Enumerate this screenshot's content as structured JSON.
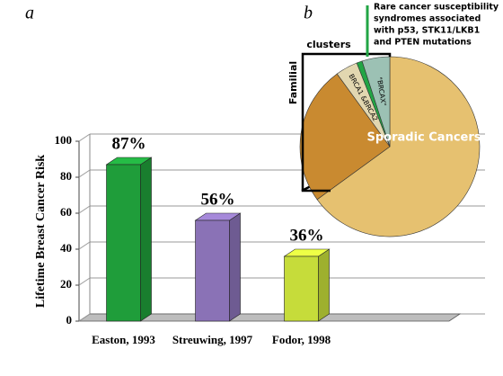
{
  "chart_data": [
    {
      "type": "bar",
      "panel": "a",
      "y_label": "Lifetime Breast Cancer Risk",
      "categories": [
        "Easton, 1993",
        "Streuwing, 1997",
        "Fodor, 1998"
      ],
      "values": [
        87,
        56,
        36
      ],
      "value_labels": [
        "87%",
        "56%",
        "36%"
      ],
      "colors": [
        "#1f9d3a",
        "#8a72b6",
        "#c6dc3a"
      ],
      "ylim": [
        0,
        100
      ],
      "yticks": [
        0,
        20,
        40,
        60,
        80,
        100
      ],
      "grid": true
    },
    {
      "type": "pie",
      "panel": "b",
      "categories": [
        "Sporadic Cancers",
        null,
        "BRCA1 &BRCA2",
        null,
        "\"BRCAX\""
      ],
      "values": [
        65,
        25,
        4,
        1,
        5
      ],
      "colors": [
        "#e6c170",
        "#c98a30",
        "#e2d7b0",
        "#22a545",
        "#9cc1b4"
      ],
      "annotations": [
        "Familial",
        "clusters",
        "Rare cancer susceptibility",
        "syndromes associated",
        "with p53, STK11/LKB1",
        "and PTEN mutations"
      ]
    }
  ]
}
